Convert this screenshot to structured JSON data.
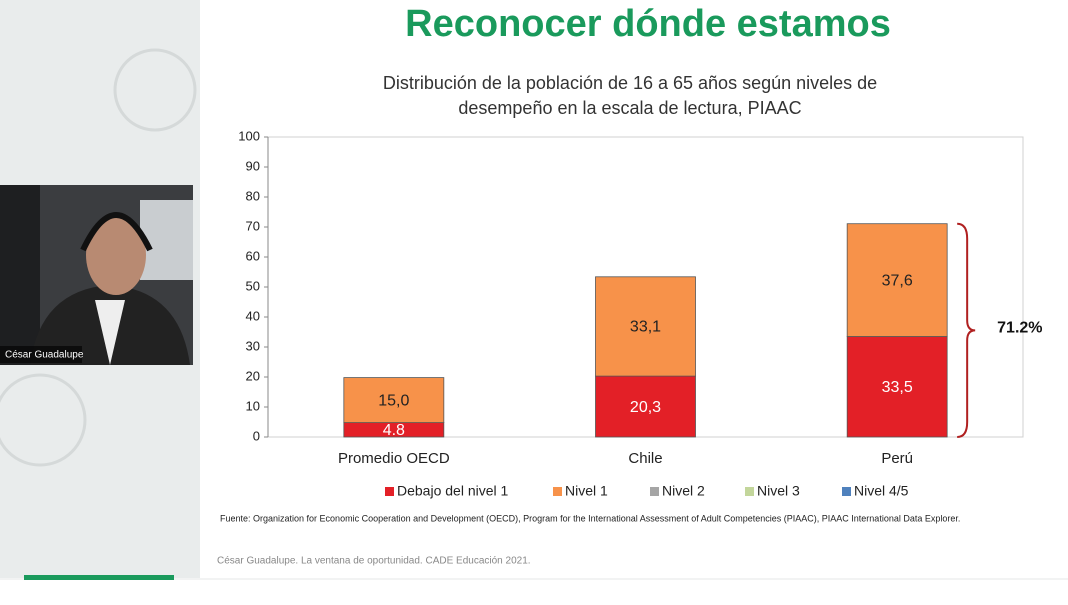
{
  "slide_title": "Reconocer dónde estamos",
  "participant": "César Guadalupe",
  "source": "Fuente: Organization for Economic Cooperation and Development (OECD), Program for the International Assessment of Adult Competencies  (PIAAC), PIAAC International Data Explorer.",
  "footer": "César Guadalupe. La ventana de oportunidad. CADE Educación 2021.",
  "chart_data": {
    "type": "bar",
    "stacked": true,
    "title": [
      "Distribución de la población de 16 a 65 años según niveles de",
      "desempeño en la escala de lectura, PIAAC"
    ],
    "categories": [
      "Promedio OECD",
      "Chile",
      "Perú"
    ],
    "series": [
      {
        "name": "Debajo del nivel 1",
        "color": "#e32027",
        "values": [
          4.8,
          20.3,
          33.5
        ],
        "value_labels": [
          "4.8",
          "20,3",
          "33,5"
        ]
      },
      {
        "name": "Nivel 1",
        "color": "#f7924a",
        "values": [
          15.0,
          33.1,
          37.6
        ],
        "value_labels": [
          "15,0",
          "33,1",
          "37,6"
        ]
      },
      {
        "name": "Nivel 2",
        "color": "#a5a5a5",
        "values": [
          null,
          null,
          null
        ]
      },
      {
        "name": "Nivel 3",
        "color": "#c3d69b",
        "values": [
          null,
          null,
          null
        ]
      },
      {
        "name": "Nivel 4/5",
        "color": "#4f81bd",
        "values": [
          null,
          null,
          null
        ]
      }
    ],
    "ylim": [
      0,
      100
    ],
    "yticks": [
      0,
      10,
      20,
      30,
      40,
      50,
      60,
      70,
      80,
      90,
      100
    ],
    "annotations": [
      {
        "label": "71.2%",
        "category": 2
      }
    ],
    "legend": "bottom"
  }
}
